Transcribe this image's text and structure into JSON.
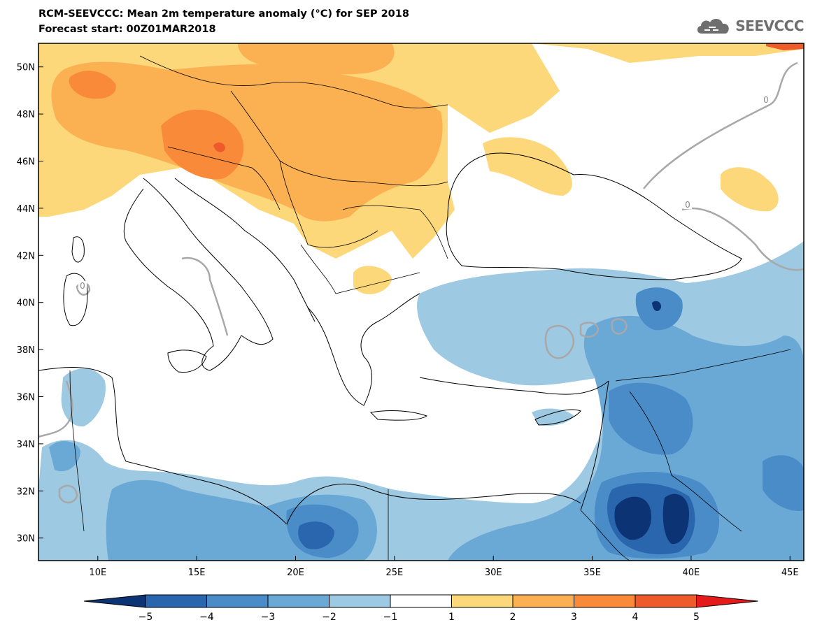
{
  "header": {
    "title_line1": "RCM-SEEVCCC: Mean 2m temperature anomaly (°C) for SEP 2018",
    "title_line2": "Forecast start: 00Z01MAR2018",
    "logo_text": "SEEVCCC"
  },
  "map": {
    "lon_ticks": [
      "10E",
      "15E",
      "20E",
      "25E",
      "30E",
      "35E",
      "40E",
      "45E"
    ],
    "lat_ticks": [
      "50N",
      "48N",
      "46N",
      "44N",
      "42N",
      "40N",
      "38N",
      "36N",
      "34N",
      "32N",
      "30N"
    ],
    "contour_labels": [
      "0",
      "0",
      "0"
    ],
    "colors": {
      "warm1": "#fdd87a",
      "warm2": "#fbb052",
      "warm3": "#f88a3a",
      "warm4": "#ef5a2a",
      "cool1": "#9ec9e2",
      "cool2": "#6aa8d6",
      "cool3": "#4a8cc8",
      "cool4": "#2a66ad",
      "cool5": "#0c3475",
      "neutral": "#ffffff",
      "contour": "#a8a8a8",
      "border": "#000000"
    }
  },
  "legend": {
    "labels": [
      "-5",
      "-4",
      "-3",
      "-2",
      "-1",
      "1",
      "2",
      "3",
      "4",
      "5"
    ],
    "colors": [
      "#0c3475",
      "#2a66ad",
      "#4a8cc8",
      "#6aa8d6",
      "#9ec9e2",
      "#ffffff",
      "#fdd87a",
      "#fbb052",
      "#f88a3a",
      "#ef5a2a",
      "#e41a1c"
    ]
  }
}
